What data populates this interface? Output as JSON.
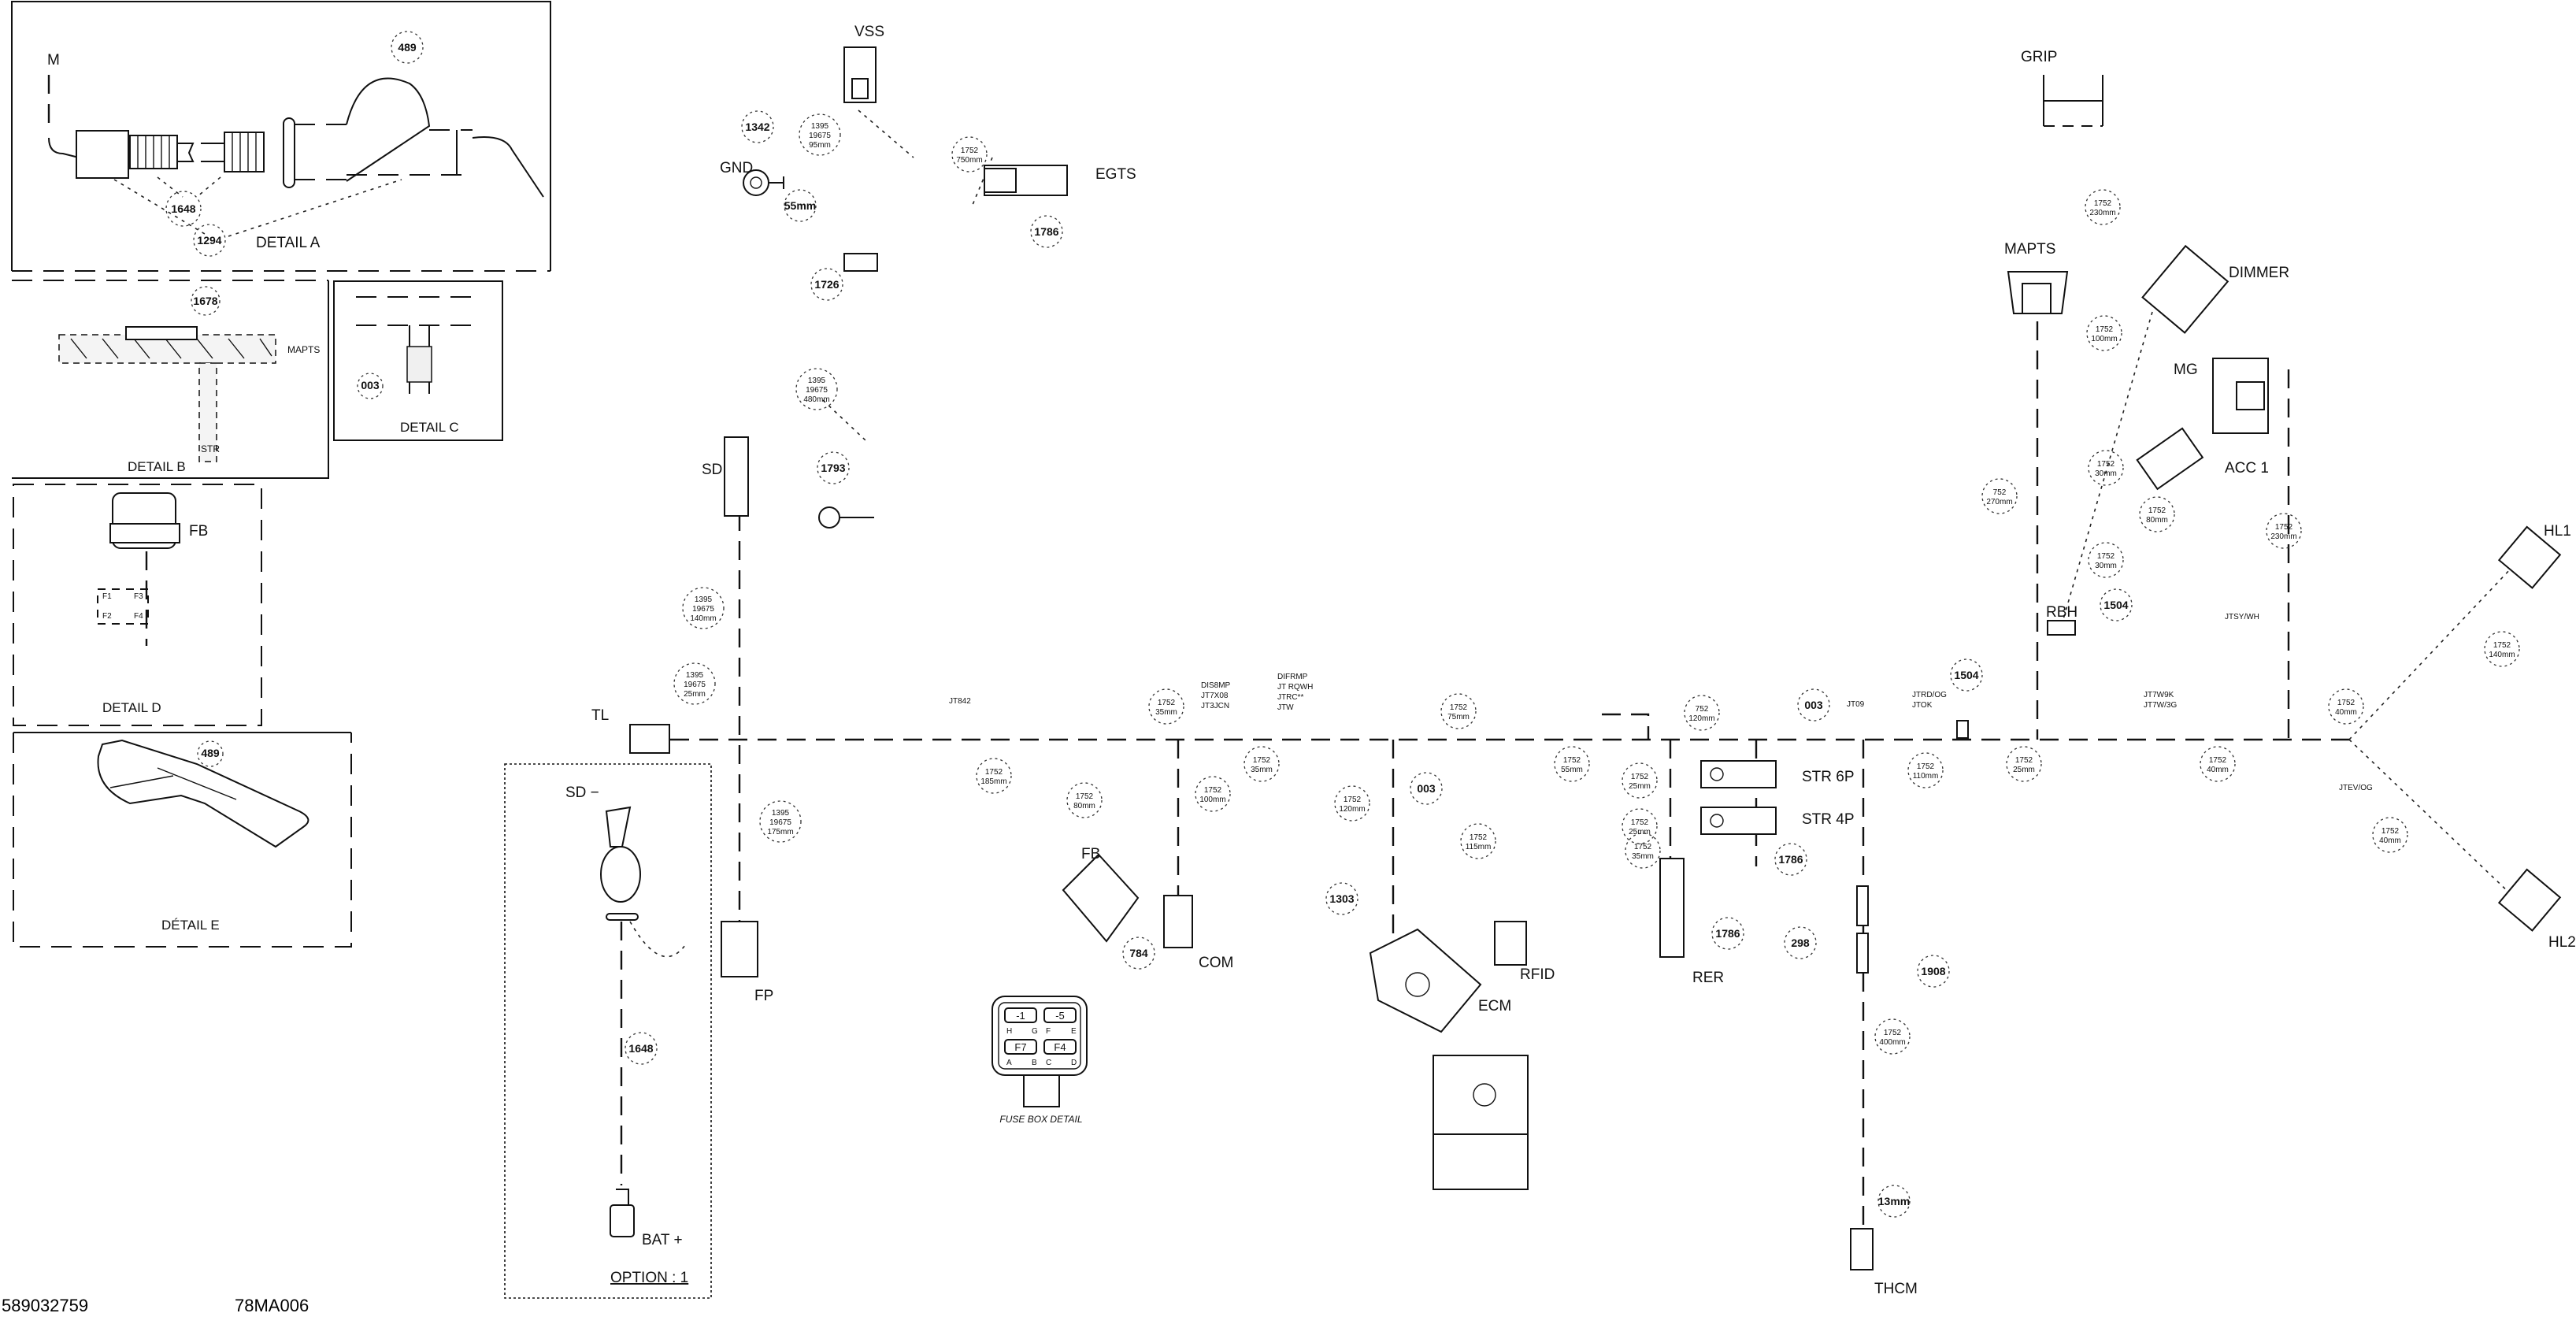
{
  "drawing": {
    "part_number": "589032759",
    "drawing_code": "78MA006"
  },
  "details": {
    "a": {
      "title": "DETAIL A",
      "label": "M",
      "callouts": [
        "489",
        "1648",
        "1294"
      ]
    },
    "b": {
      "title": "DETAIL B",
      "callout": "1678",
      "labels": [
        "MAPTS",
        "STR"
      ]
    },
    "c": {
      "title": "DETAIL C",
      "callout": "003"
    },
    "d": {
      "title": "DETAIL D",
      "label": "FB",
      "pins": [
        "F1",
        "F3",
        "F2",
        "F4"
      ]
    },
    "e": {
      "title": "DÉTAIL E",
      "callout": "489"
    }
  },
  "option": {
    "title": "OPTION : 1",
    "connectors": [
      "SD −",
      "BAT +"
    ]
  },
  "fuse_box": {
    "title": "FUSE BOX DETAIL",
    "fuses": [
      "-1",
      "-5",
      "F7",
      "F4"
    ],
    "pins_top": [
      "H",
      "G",
      "F",
      "E"
    ],
    "pins_bottom": [
      "A",
      "B",
      "C",
      "D"
    ]
  },
  "connectors": [
    "VSS",
    "GND",
    "EGTS",
    "SD",
    "TL",
    "FP",
    "FB",
    "COM",
    "ECM",
    "RFID",
    "RER",
    "STR 6P",
    "STR 4P",
    "THCM",
    "GRIP",
    "MAPTS",
    "DIMMER",
    "MG",
    "ACC 1",
    "HL1",
    "HL2",
    "RBH"
  ],
  "callouts": [
    [
      "1342"
    ],
    [
      "1395",
      "19675",
      "95mm"
    ],
    [
      "55mm"
    ],
    [
      "1752",
      "750mm"
    ],
    [
      "1786"
    ],
    [
      "1726"
    ],
    [
      "1395",
      "19675",
      "480mm"
    ],
    [
      "1793"
    ],
    [
      "1395",
      "19675",
      "140mm"
    ],
    [
      "1395",
      "19675",
      "25mm"
    ],
    [
      "1395",
      "19675",
      "175mm"
    ],
    [
      "1752",
      "185mm"
    ],
    [
      "1752",
      "80mm"
    ],
    [
      "784"
    ],
    [
      "1752",
      "35mm"
    ],
    [
      "1752",
      "100mm"
    ],
    [
      "1752",
      "35mm"
    ],
    [
      "1752",
      "120mm"
    ],
    [
      "1303"
    ],
    [
      "003"
    ],
    [
      "1752",
      "75mm"
    ],
    [
      "1752",
      "115mm"
    ],
    [
      "1752",
      "55mm"
    ],
    [
      "1752",
      "25mm"
    ],
    [
      "1752",
      "25mm"
    ],
    [
      "1752",
      "35mm"
    ],
    [
      "752",
      "120mm"
    ],
    [
      "1786"
    ],
    [
      "003"
    ],
    [
      "1504"
    ],
    [
      "1752",
      "110mm"
    ],
    [
      "1752",
      "25mm"
    ],
    [
      "1752",
      "40mm"
    ],
    [
      "1752",
      "40mm"
    ],
    [
      "1752",
      "40mm"
    ],
    [
      "1752",
      "140mm"
    ],
    [
      "1752",
      "230mm"
    ],
    [
      "1786"
    ],
    [
      "298"
    ],
    [
      "1908"
    ],
    [
      "1752",
      "400mm"
    ],
    [
      "13mm"
    ],
    [
      "1752",
      "230mm"
    ],
    [
      "1752",
      "100mm"
    ],
    [
      "1752",
      "30mm"
    ],
    [
      "752",
      "270mm"
    ],
    [
      "1752",
      "80mm"
    ],
    [
      "1752",
      "30mm"
    ],
    [
      "1504"
    ],
    [
      "1648"
    ]
  ],
  "wire_codes": [
    [
      "JT842"
    ],
    [
      "DIS8MP",
      "JT7X08",
      "JT3JCN"
    ],
    [
      "DIFRMP",
      "JT RQWH",
      "JTRC**",
      "JTW"
    ],
    [
      "JT09"
    ],
    [
      "JTRD/OG",
      "JTOK"
    ],
    [
      "JT7W9K",
      "JT7W/3G"
    ],
    [
      "JTSY/WH"
    ],
    [
      "JTEV/OG"
    ]
  ]
}
